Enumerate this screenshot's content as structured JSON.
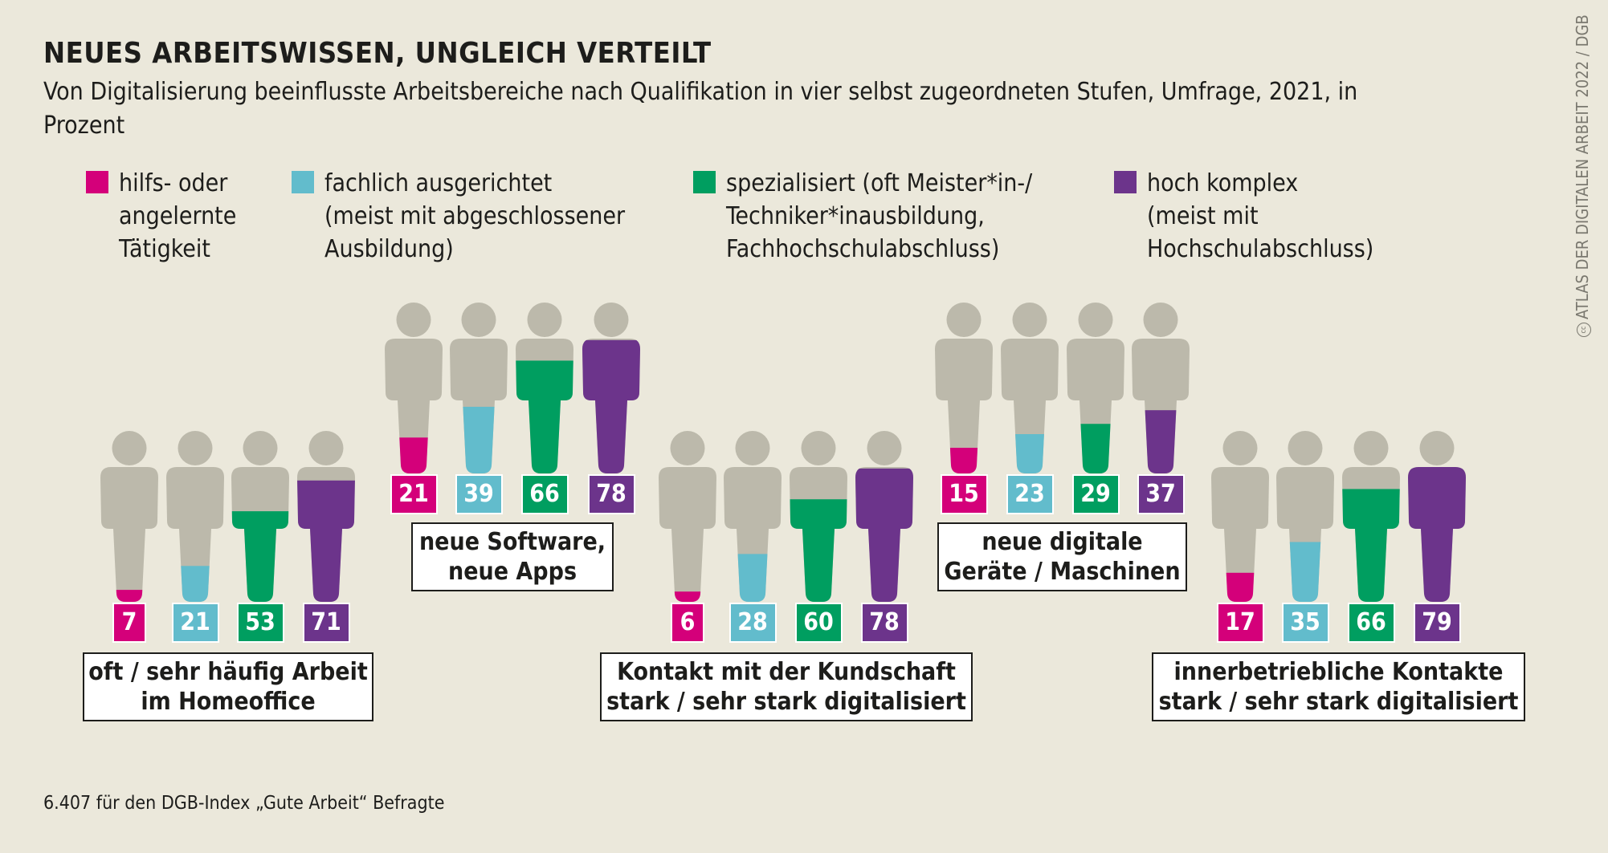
{
  "title": "NEUES ARBEITSWISSEN, UNGLEICH VERTEILT",
  "subtitle": "Von Digitalisierung beeinflusste Arbeitsbereiche nach Qualifikation in vier selbst zugeordneten Stufen, Umfrage, 2021, in Prozent",
  "footnote": "6.407 für den DGB-Index „Gute Arbeit“ Befragte",
  "credit": "ATLAS DER DIGITALEN ARBEIT 2022 / DGB",
  "credit_icon": "creative-commons-icon",
  "colors": {
    "background": "#ebe8db",
    "figure_empty": "#bcb9ab"
  },
  "chart_data": {
    "type": "pictogram",
    "unit": "Prozent",
    "series": [
      {
        "name": "hilfs- oder\nangelernte\nTätigkeit",
        "color": "#d4007a"
      },
      {
        "name": "fachlich ausgerichtet\n(meist mit abgeschlossener\nAusbildung)",
        "color": "#62bccc"
      },
      {
        "name": "spezialisiert (oft Meister*in-/\nTechniker*inausbildung,\nFachhochschulabschluss)",
        "color": "#009e60"
      },
      {
        "name": "hoch komplex\n(meist  mit\nHochschulabschluss)",
        "color": "#6c348b"
      }
    ],
    "categories": [
      {
        "label": "oft / sehr häufig Arbeit\nim Homeoffice",
        "values": [
          7,
          21,
          53,
          71
        ]
      },
      {
        "label": "neue Software,\nneue Apps",
        "values": [
          21,
          39,
          66,
          78
        ]
      },
      {
        "label": "Kontakt mit der Kundschaft\nstark / sehr stark digitalisiert",
        "values": [
          6,
          28,
          60,
          78
        ]
      },
      {
        "label": "neue digitale\nGeräte / Maschinen",
        "values": [
          15,
          23,
          29,
          37
        ]
      },
      {
        "label": "innerbetriebliche Kontakte\nstark / sehr stark digitalisiert",
        "values": [
          17,
          35,
          66,
          79
        ]
      }
    ]
  }
}
